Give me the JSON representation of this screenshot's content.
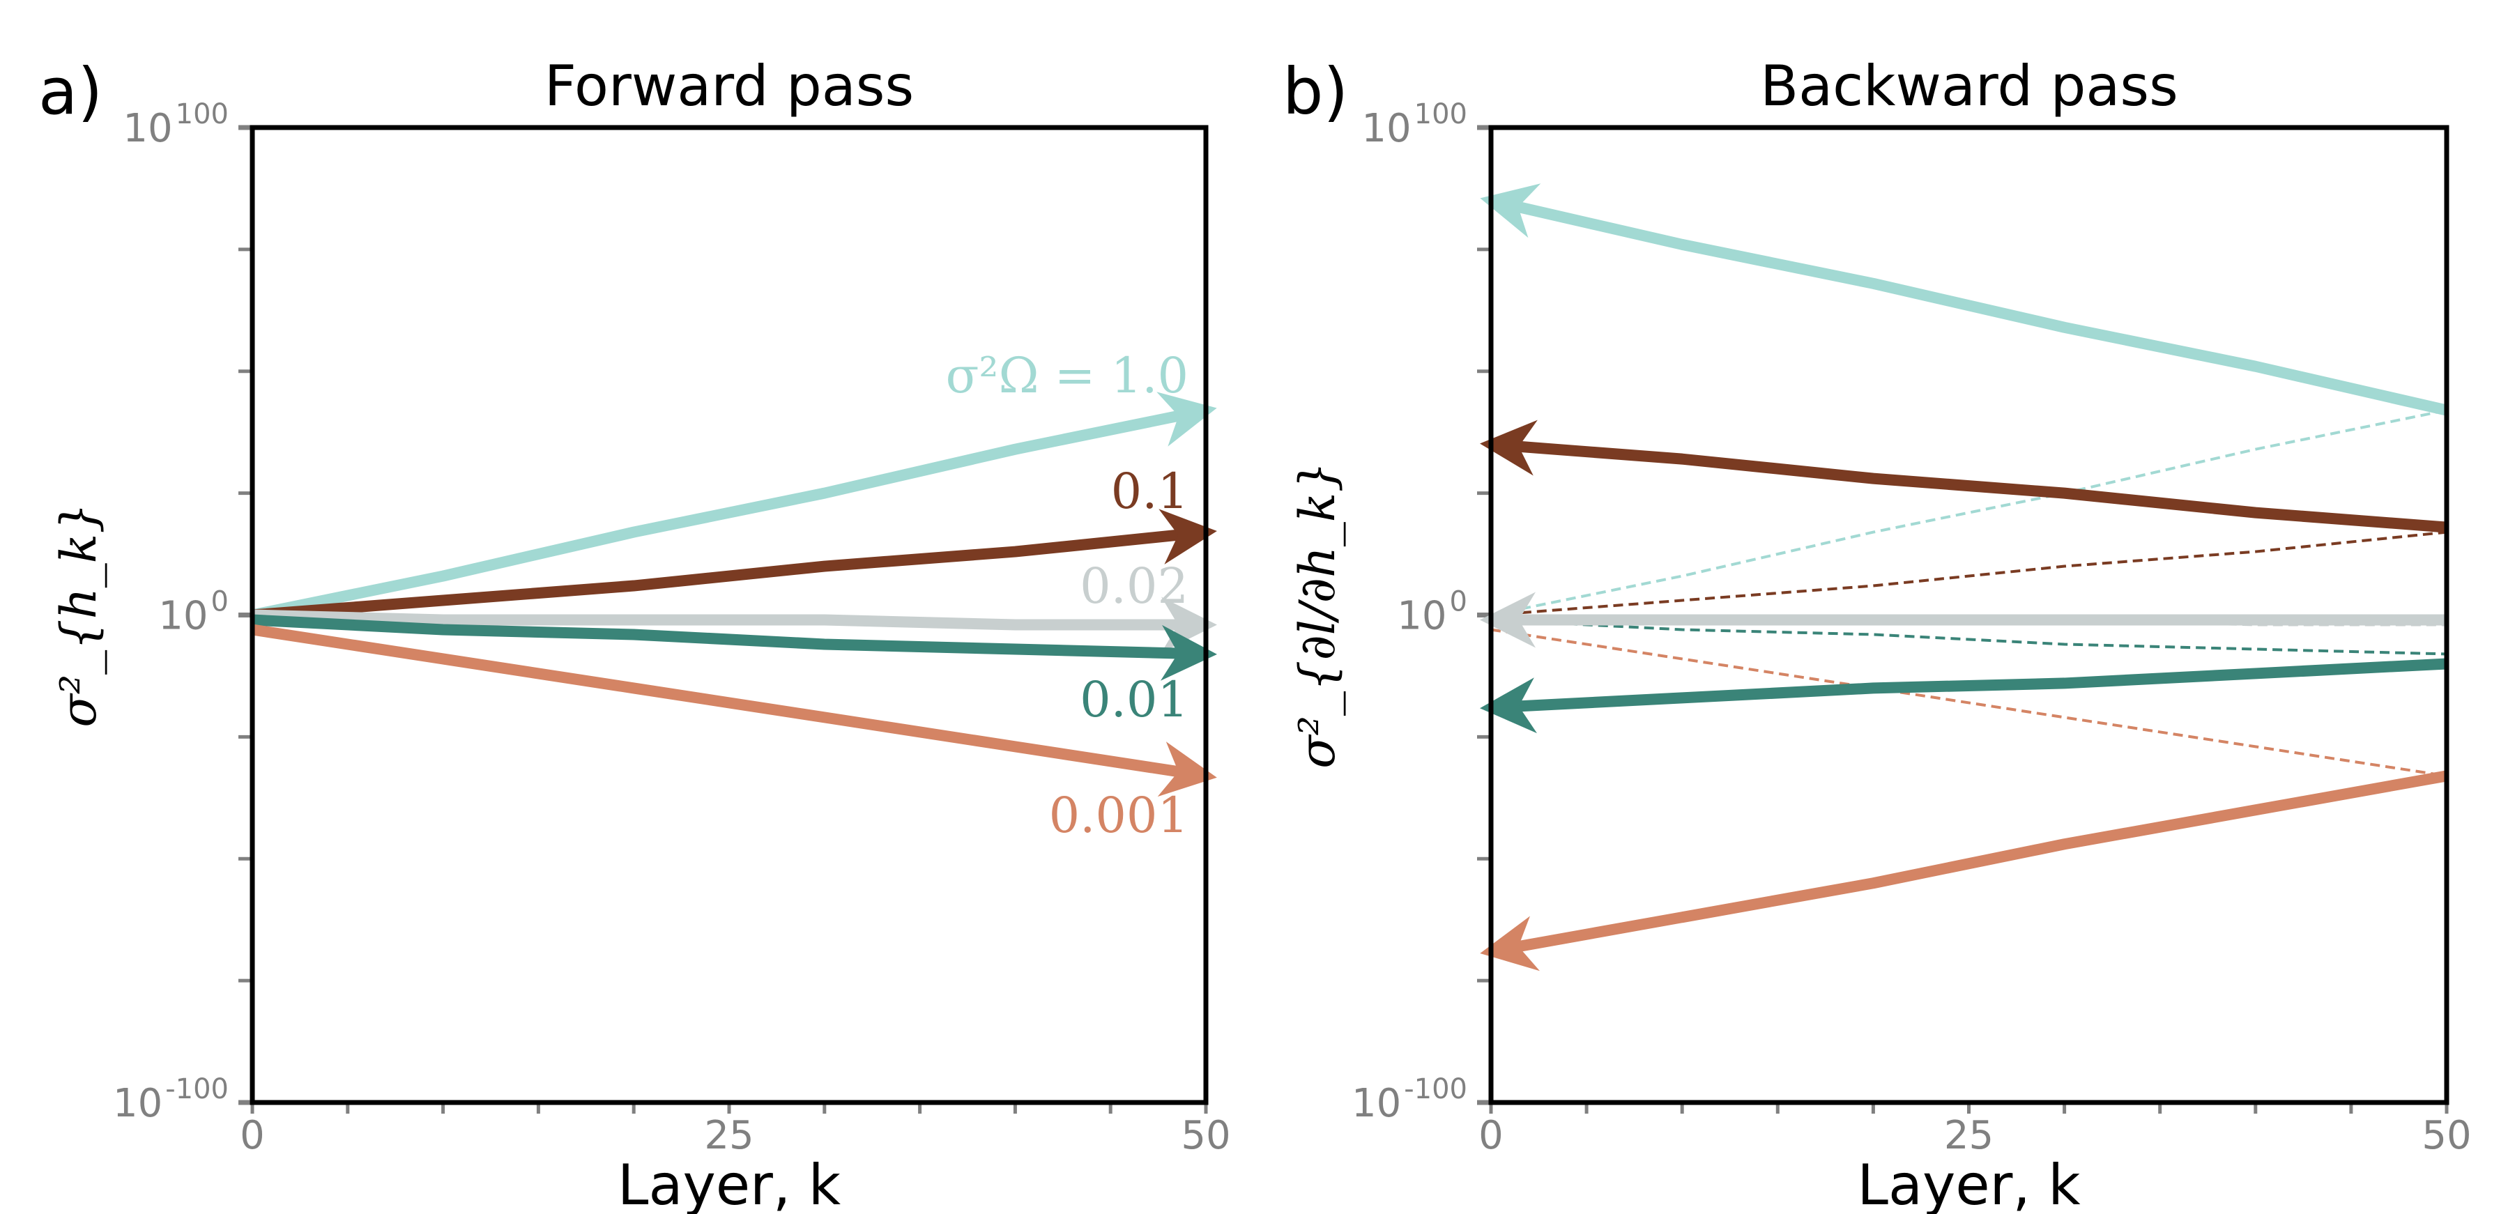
{
  "chart_data": [
    {
      "type": "line",
      "panel_label": "a)",
      "title": "Forward pass",
      "xlabel": "Layer, k",
      "ylabel": "σ²_{h_k}",
      "xlim": [
        0,
        50
      ],
      "ylim": [
        1e-100,
        1e+100
      ],
      "yscale": "log",
      "xticks": [
        "0",
        "25",
        "50"
      ],
      "yticks": [
        {
          "base": "10",
          "exp": "100"
        },
        {
          "base": "10",
          "exp": "0"
        },
        {
          "base": "10",
          "exp": "-100"
        }
      ],
      "arrow_direction": "right",
      "series": [
        {
          "name": "σ²_Ω = 1.0",
          "label_display": "σ²Ω = 1.0",
          "color": "#a2d9d3",
          "x": [
            0,
            10,
            20,
            30,
            40,
            50
          ],
          "y": [
            1.0,
            100000000.0,
            1e+17,
            1e+25,
            1e+34,
            1e+42
          ]
        },
        {
          "name": "0.1",
          "label_display": "0.1",
          "color": "#7a3b22",
          "x": [
            0,
            10,
            20,
            30,
            40,
            50
          ],
          "y": [
            1.0,
            1000.0,
            1000000.0,
            10000000000.0,
            10000000000000.0,
            1e+17
          ]
        },
        {
          "name": "0.02",
          "label_display": "0.02",
          "color": "#c8cfcf",
          "x": [
            0,
            10,
            20,
            30,
            40,
            50
          ],
          "y": [
            1.0,
            0.1,
            0.1,
            0.1,
            0.01,
            0.01
          ]
        },
        {
          "name": "0.01",
          "label_display": "0.01",
          "color": "#3a8478",
          "x": [
            0,
            10,
            20,
            30,
            40,
            50
          ],
          "y": [
            0.1,
            0.001,
            0.0001,
            1e-06,
            1e-07,
            1e-08
          ]
        },
        {
          "name": "0.001",
          "label_display": "0.001",
          "color": "#d48464",
          "x": [
            0,
            10,
            20,
            30,
            40,
            50
          ],
          "y": [
            0.001,
            1e-09,
            1e-15,
            1e-21,
            1e-27,
            1e-33
          ]
        }
      ]
    },
    {
      "type": "line",
      "panel_label": "b)",
      "title": "Backward pass",
      "xlabel": "Layer, k",
      "ylabel": "σ²_{∂l/∂h_k}",
      "xlim": [
        0,
        50
      ],
      "ylim": [
        1e-100,
        1e+100
      ],
      "yscale": "log",
      "xticks": [
        "0",
        "25",
        "50"
      ],
      "yticks": [
        {
          "base": "10",
          "exp": "100"
        },
        {
          "base": "10",
          "exp": "0"
        },
        {
          "base": "10",
          "exp": "-100"
        }
      ],
      "arrow_direction": "left",
      "series": [
        {
          "color": "#a2d9d3",
          "x": [
            0,
            10,
            20,
            30,
            40,
            50
          ],
          "y": [
            1e+85,
            1e+76,
            1e+68,
            1e+59,
            1e+51,
            1e+42
          ]
        },
        {
          "color": "#7a3b22",
          "x": [
            0,
            10,
            20,
            30,
            40,
            50
          ],
          "y": [
            1e+35,
            1e+32,
            1e+28,
            1e+25,
            1e+21,
            1e+18
          ]
        },
        {
          "color": "#c8cfcf",
          "x": [
            0,
            10,
            20,
            30,
            40,
            50
          ],
          "y": [
            0.1,
            0.1,
            0.1,
            0.1,
            0.1,
            0.1
          ]
        },
        {
          "color": "#3a8478",
          "x": [
            0,
            10,
            20,
            30,
            40,
            50
          ],
          "y": [
            1e-19,
            1e-17,
            1e-15,
            1e-14,
            1e-12,
            1e-10
          ]
        },
        {
          "color": "#d48464",
          "x": [
            0,
            10,
            20,
            30,
            40,
            50
          ],
          "y": [
            1e-69,
            1e-62,
            1e-55,
            1e-47,
            1e-40,
            1e-33
          ]
        }
      ],
      "dashed_reference": "forward pass curves"
    }
  ]
}
